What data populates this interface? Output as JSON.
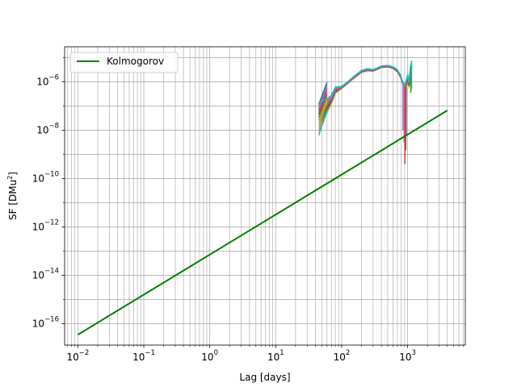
{
  "chart_data": {
    "type": "line",
    "xscale": "log",
    "yscale": "log",
    "xlabel": "Lag [days]",
    "ylabel": "SF [DMu",
    "ylabel_sup": "2",
    "ylabel_end": "]",
    "xlim": [
      0.0063,
      7500
    ],
    "ylim": [
      1.3e-17,
      2.8e-05
    ],
    "grid": true,
    "grid_minor": true,
    "legend": {
      "placement": "upper-left",
      "entries": [
        {
          "label": "Kolmogorov",
          "color": "#008000"
        }
      ]
    },
    "x_ticks": [
      {
        "value": 0.01,
        "base": "10",
        "exp": "−2"
      },
      {
        "value": 0.1,
        "base": "10",
        "exp": "−1"
      },
      {
        "value": 1,
        "base": "10",
        "exp": "0"
      },
      {
        "value": 10,
        "base": "10",
        "exp": "1"
      },
      {
        "value": 100,
        "base": "10",
        "exp": "2"
      },
      {
        "value": 1000,
        "base": "10",
        "exp": "3"
      }
    ],
    "y_ticks": [
      {
        "value": 1e-16,
        "base": "10",
        "exp": "−16"
      },
      {
        "value": 1e-14,
        "base": "10",
        "exp": "−14"
      },
      {
        "value": 1e-12,
        "base": "10",
        "exp": "−12"
      },
      {
        "value": 1e-10,
        "base": "10",
        "exp": "−10"
      },
      {
        "value": 1e-08,
        "base": "10",
        "exp": "−8"
      },
      {
        "value": 1e-06,
        "base": "10",
        "exp": "−6"
      }
    ],
    "kolmogorov": {
      "label": "Kolmogorov",
      "color": "#008000",
      "x": [
        0.01,
        4000
      ],
      "y": [
        3.5e-17,
        6.5e-08
      ]
    },
    "envelope": {
      "x": [
        45,
        50,
        60,
        70,
        80,
        100,
        120,
        150,
        200,
        250,
        300,
        350,
        400,
        500,
        600,
        700,
        780,
        850,
        900,
        950,
        1000,
        1050,
        1100,
        1150
      ],
      "upper": [
        1.3e-07,
        1.6e-07,
        2e-07,
        2.8e-07,
        6e-07,
        6.5e-07,
        9.5e-07,
        1.6e-06,
        3e-06,
        3.5e-06,
        3.2e-06,
        3.8e-06,
        4.5e-06,
        4.8e-06,
        4.2e-06,
        3.2e-06,
        1.9e-06,
        1e-06,
        7e-07,
        1.1e-06,
        2e-06,
        1.1e-06,
        4e-06,
        7e-06
      ],
      "lower": [
        6e-09,
        1.5e-08,
        5e-08,
        1.2e-07,
        3.2e-07,
        5.2e-07,
        7.8e-07,
        1.3e-06,
        2.4e-06,
        2.8e-06,
        2.7e-06,
        3.2e-06,
        3.8e-06,
        4e-06,
        3.5e-06,
        2.5e-06,
        1.5e-06,
        7.5e-07,
        5e-07,
        6e-07,
        9e-07,
        6e-07,
        8e-07,
        1.5e-06
      ]
    },
    "dips": [
      {
        "x": 850,
        "ytop": 8e-07,
        "ybottom": 1e-08,
        "color": "#9467bd"
      },
      {
        "x": 880,
        "ytop": 7e-07,
        "ybottom": 3e-09,
        "color": "#e377c2"
      },
      {
        "x": 910,
        "ytop": 6.5e-07,
        "ybottom": 4e-10,
        "color": "#d62728"
      },
      {
        "x": 940,
        "ytop": 6e-07,
        "ybottom": 1.5e-09,
        "color": "#8c564b"
      },
      {
        "x": 960,
        "ytop": 6e-07,
        "ybottom": 6e-09,
        "color": "#7f7f7f"
      }
    ],
    "tail_spikes": [
      {
        "x": 1150,
        "ytop": 7.5e-06,
        "ybottom": 5e-07,
        "color": "#17becf"
      },
      {
        "x": 1120,
        "ytop": 4.5e-06,
        "ybottom": 3.5e-07,
        "color": "#2ca02c"
      }
    ],
    "series_colors": [
      "#bcbd22",
      "#ff7f0e",
      "#2ca02c",
      "#1f77b4",
      "#d62728",
      "#9467bd",
      "#8c564b",
      "#e377c2",
      "#7f7f7f",
      "#17becf"
    ],
    "series_lowstart": [
      6e-09,
      1.8e-08,
      2.6e-08,
      3.5e-08,
      4.5e-08,
      5.5e-08,
      7e-08,
      8.5e-08,
      1e-07,
      1.2e-07
    ],
    "series_lowcolors": [
      "#17becf",
      "#bcbd22",
      "#ff7f0e",
      "#2ca02c",
      "#d62728",
      "#9467bd",
      "#8c564b",
      "#e377c2",
      "#7f7f7f",
      "#1f77b4"
    ]
  }
}
